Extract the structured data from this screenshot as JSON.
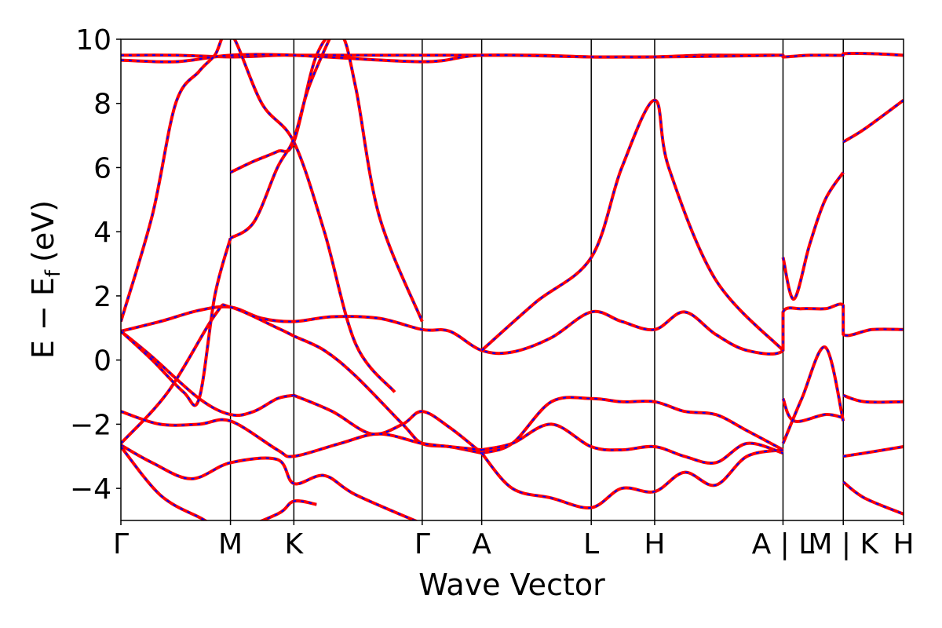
{
  "chart_data": {
    "type": "line",
    "title": "",
    "xlabel": "Wave Vector",
    "ylabel": "E − E_f (eV)",
    "ylabel_parts": {
      "main": "E  −  E",
      "sub": "f",
      "unit": "(eV)"
    },
    "ylim": [
      -5,
      10
    ],
    "yticks": [
      -4,
      -2,
      0,
      2,
      4,
      6,
      8,
      10
    ],
    "ytick_labels": [
      "−4",
      "−2",
      "0",
      "2",
      "4",
      "6",
      "8",
      "10"
    ],
    "xlim": [
      0,
      1
    ],
    "kpath_ticks": [
      {
        "label": "Γ",
        "x": 0.0
      },
      {
        "label": "M",
        "x": 0.14
      },
      {
        "label": "K",
        "x": 0.221
      },
      {
        "label": "Γ",
        "x": 0.385
      },
      {
        "label": "A",
        "x": 0.461
      },
      {
        "label": "L",
        "x": 0.601
      },
      {
        "label": "H",
        "x": 0.682
      },
      {
        "label": "A | L",
        "x": 0.846
      },
      {
        "label": "M | K",
        "x": 0.923
      },
      {
        "label": "H",
        "x": 1.0
      }
    ],
    "series_colors": {
      "primary": "#ff0000",
      "overlay": "#0000ff"
    },
    "bands": [
      {
        "x": [
          0.0,
          0.07,
          0.14,
          0.2,
          0.221,
          0.3,
          0.385,
          0.42,
          0.461,
          0.53,
          0.601,
          0.64,
          0.682,
          0.74,
          0.79,
          0.846,
          0.846,
          0.88,
          0.923,
          0.923,
          0.96,
          1.0
        ],
        "y": [
          9.5,
          9.5,
          9.45,
          9.5,
          9.5,
          9.5,
          9.5,
          9.5,
          9.5,
          9.5,
          9.45,
          9.45,
          9.45,
          9.5,
          9.5,
          9.5,
          9.45,
          9.5,
          9.5,
          9.55,
          9.55,
          9.5
        ]
      },
      {
        "x": [
          0.0,
          0.07,
          0.14,
          0.221,
          0.385,
          0.461,
          0.601,
          0.682,
          0.846
        ],
        "y": [
          9.35,
          9.3,
          9.5,
          9.5,
          9.3,
          9.5,
          9.45,
          9.45,
          9.5
        ]
      },
      {
        "x": [
          0.0,
          0.05,
          0.1,
          0.14,
          0.18,
          0.221,
          0.27,
          0.33,
          0.385,
          0.42,
          0.461,
          0.5,
          0.55,
          0.601,
          0.64,
          0.682,
          0.72,
          0.76,
          0.8,
          0.846,
          0.846,
          0.87,
          0.9,
          0.923,
          0.923,
          0.96,
          1.0
        ],
        "y": [
          0.9,
          1.2,
          1.55,
          1.65,
          1.3,
          1.2,
          1.35,
          1.3,
          0.95,
          0.9,
          0.3,
          0.25,
          0.7,
          1.5,
          1.2,
          0.95,
          1.5,
          0.8,
          0.3,
          0.3,
          1.5,
          1.6,
          1.6,
          1.7,
          0.8,
          0.95,
          0.95
        ]
      },
      {
        "x": [
          0.0,
          0.04,
          0.1,
          0.14,
          0.17,
          0.2,
          0.221
        ],
        "y": [
          0.9,
          0.1,
          -1.2,
          -1.7,
          -1.6,
          -1.2,
          -1.1
        ]
      },
      {
        "x": [
          0.221,
          0.27,
          0.32,
          0.36,
          0.385,
          0.42,
          0.461
        ],
        "y": [
          -1.1,
          -1.6,
          -2.3,
          -2.0,
          -1.6,
          -2.1,
          -2.9
        ]
      },
      {
        "x": [
          0.0,
          0.06,
          0.12,
          0.14,
          0.2,
          0.221,
          0.26,
          0.3,
          0.36,
          0.385,
          0.42,
          0.461
        ],
        "y": [
          -2.6,
          -1.0,
          1.4,
          1.65,
          1.0,
          0.75,
          0.3,
          -0.5,
          -2.0,
          -2.6,
          -2.7,
          -2.9
        ]
      },
      {
        "x": [
          0.0,
          0.05,
          0.1,
          0.14,
          0.2,
          0.221,
          0.28,
          0.33,
          0.385,
          0.42,
          0.461
        ],
        "y": [
          -1.6,
          -2.0,
          -2.0,
          -1.9,
          -2.8,
          -3.0,
          -2.6,
          -2.3,
          -2.6,
          -2.7,
          -2.8
        ]
      },
      {
        "x": [
          0.0,
          0.04,
          0.09,
          0.14,
          0.2,
          0.221,
          0.26,
          0.3,
          0.385
        ],
        "y": [
          -2.65,
          -3.2,
          -3.7,
          -3.2,
          -3.1,
          -3.85,
          -3.6,
          -4.2,
          -5.1
        ]
      },
      {
        "x": [
          0.0,
          0.05,
          0.1,
          0.14,
          0.2,
          0.221,
          0.25
        ],
        "y": [
          -2.7,
          -4.2,
          -4.9,
          -5.3,
          -4.8,
          -4.4,
          -4.5
        ]
      },
      {
        "x": [
          0.0,
          0.04,
          0.07,
          0.1,
          0.12,
          0.14,
          0.18,
          0.221,
          0.26,
          0.3,
          0.35
        ],
        "y": [
          1.2,
          4.5,
          8.0,
          9.0,
          9.5,
          10.2,
          8.0,
          6.8,
          4.0,
          0.5,
          -1.0
        ]
      },
      {
        "x": [
          0.14,
          0.17,
          0.2,
          0.221,
          0.25,
          0.28,
          0.3,
          0.33,
          0.385
        ],
        "y": [
          5.85,
          6.2,
          6.5,
          6.8,
          9.5,
          10.2,
          8.5,
          4.5,
          1.2
        ]
      },
      {
        "x": [
          0.14,
          0.17,
          0.2,
          0.221,
          0.24,
          0.27
        ],
        "y": [
          3.8,
          4.3,
          6.0,
          6.9,
          8.5,
          10.2
        ]
      },
      {
        "x": [
          0.0,
          0.04,
          0.08,
          0.1,
          0.12,
          0.14
        ],
        "y": [
          0.9,
          0.0,
          -1.0,
          -1.2,
          2.0,
          3.8
        ]
      },
      {
        "x": [
          0.461,
          0.5,
          0.55,
          0.601,
          0.64,
          0.682,
          0.72,
          0.76,
          0.8,
          0.846
        ],
        "y": [
          -2.9,
          -2.6,
          -1.3,
          -1.2,
          -1.3,
          -1.3,
          -1.6,
          -1.7,
          -2.2,
          -2.8
        ]
      },
      {
        "x": [
          0.461,
          0.5,
          0.55,
          0.601,
          0.64,
          0.682,
          0.72,
          0.76,
          0.8,
          0.846
        ],
        "y": [
          -2.9,
          -4.0,
          -4.3,
          -4.6,
          -4.0,
          -4.1,
          -3.5,
          -3.9,
          -3.0,
          -2.8
        ]
      },
      {
        "x": [
          0.461,
          0.5,
          0.55,
          0.601,
          0.64,
          0.682,
          0.72,
          0.76,
          0.8,
          0.846
        ],
        "y": [
          -2.8,
          -2.6,
          -2.0,
          -2.7,
          -2.8,
          -2.7,
          -3.0,
          -3.2,
          -2.6,
          -2.9
        ]
      },
      {
        "x": [
          0.461,
          0.53,
          0.601,
          0.64,
          0.682,
          0.7,
          0.76,
          0.846
        ],
        "y": [
          0.3,
          1.8,
          3.2,
          6.0,
          8.1,
          6.0,
          2.5,
          0.3
        ]
      },
      {
        "x": [
          0.846,
          0.86,
          0.88,
          0.9,
          0.923
        ],
        "y": [
          3.2,
          1.9,
          3.6,
          5.0,
          5.85
        ]
      },
      {
        "x": [
          0.846,
          0.86,
          0.9,
          0.923
        ],
        "y": [
          -1.2,
          -1.9,
          -1.7,
          -1.8
        ]
      },
      {
        "x": [
          0.846,
          0.87,
          0.9,
          0.923
        ],
        "y": [
          -2.6,
          -1.2,
          0.4,
          -1.9
        ]
      },
      {
        "x": [
          0.923,
          0.95,
          1.0
        ],
        "y": [
          6.8,
          7.2,
          8.1
        ]
      },
      {
        "x": [
          0.923,
          0.95,
          1.0
        ],
        "y": [
          -1.1,
          -1.3,
          -1.3
        ]
      },
      {
        "x": [
          0.923,
          0.95,
          1.0
        ],
        "y": [
          -3.0,
          -2.9,
          -2.7
        ]
      },
      {
        "x": [
          0.923,
          0.95,
          1.0
        ],
        "y": [
          -3.8,
          -4.3,
          -4.8
        ]
      }
    ]
  }
}
